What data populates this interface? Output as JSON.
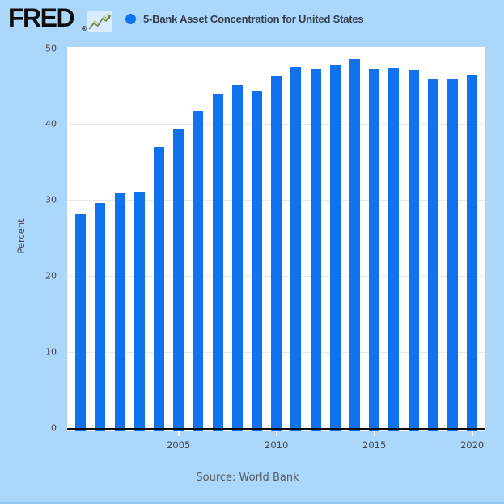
{
  "header": {
    "logo_text": "FRED",
    "registered_mark": "®",
    "legend_marker": "filled-circle",
    "series_title": "5-Bank Asset Concentration for United States"
  },
  "chart_data": {
    "type": "bar",
    "title": "5-Bank Asset Concentration for United States",
    "xlabel": "",
    "ylabel": "Percent",
    "x": [
      2000,
      2001,
      2002,
      2003,
      2004,
      2005,
      2006,
      2007,
      2008,
      2009,
      2010,
      2011,
      2012,
      2013,
      2014,
      2015,
      2016,
      2017,
      2018,
      2019,
      2020
    ],
    "values": [
      28.19,
      29.63,
      30.97,
      31.09,
      36.93,
      39.4,
      41.73,
      43.96,
      45.15,
      44.43,
      46.32,
      47.52,
      47.26,
      47.8,
      48.58,
      47.25,
      47.34,
      47.02,
      45.93,
      45.86,
      46.4
    ],
    "ylim": [
      0,
      50
    ],
    "yticks": [
      0,
      10,
      20,
      30,
      40,
      50
    ],
    "xticks": [
      2005,
      2010,
      2015,
      2020
    ],
    "grid": true,
    "legend_position": "top",
    "bar_color": "#1172ef"
  },
  "footer": {
    "source_label": "Source: World Bank"
  },
  "colors": {
    "background": "#abd7fa",
    "plot_background": "#ffffff",
    "bar": "#1172ef",
    "grid": "#e9e9e9",
    "axis": "#0b0b0b",
    "tick_text": "#43474c",
    "tick_mark": "#ffffff",
    "title_text": "#353e4e",
    "source_text": "#565b62",
    "logo_text": "#0d0d0d",
    "bottom_edge": "#93c6ee"
  }
}
